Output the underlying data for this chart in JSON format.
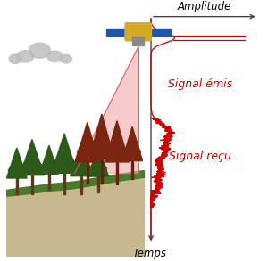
{
  "bg_color": "#ffffff",
  "signal_color": "#cc0000",
  "axis_color": "#444444",
  "label_amplitude": "Amplitude",
  "label_temps": "Temps",
  "label_emis": "Signal émis",
  "label_recu": "Signal reçu",
  "label_fontsize": 8.5,
  "forest_color": "#2d5a1b",
  "beam_color": "#f0a0a0",
  "beam_alpha": 0.55,
  "satellite_color": "#2255aa",
  "cloud_color": "#bbbbbb",
  "tree_dark": "#7a2510",
  "trunk_color": "#5c3a1e"
}
